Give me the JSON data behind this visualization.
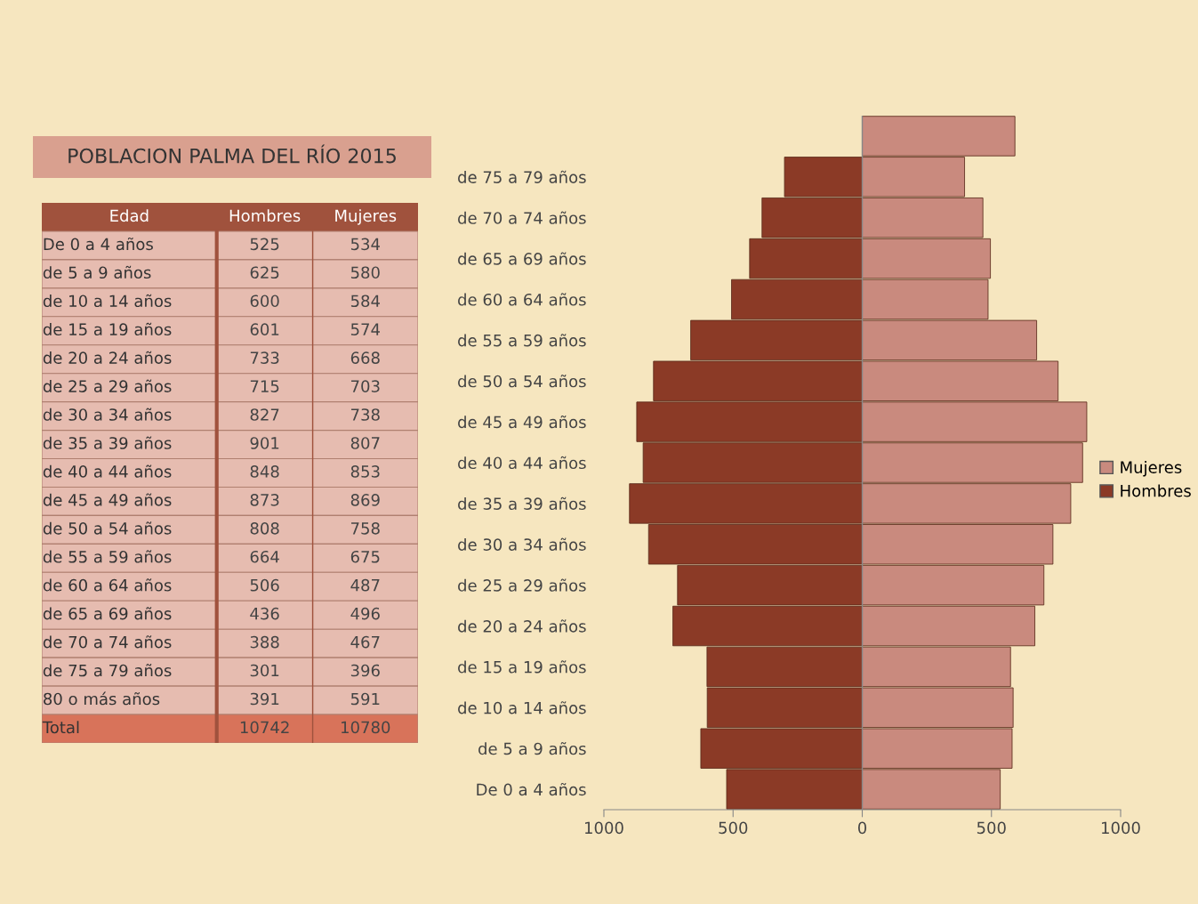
{
  "chart_data": [
    {
      "type": "other",
      "title": "POBLACION PALMA DEL RÍO 2015",
      "annotations": [
        "Edad"
      ],
      "data_labels": true,
      "categories": [
        "De 0 a 4 años",
        "de 5 a 9 años",
        "de 10 a 14 años",
        "de 15 a 19 años",
        "de 20 a 24 años",
        "de 25 a 29 años",
        "de 30 a 34 años",
        "de 35 a 39 años",
        "de 40 a 44 años",
        "de 45 a 49 años",
        "de 50 a 54 años",
        "de 55 a 59 años",
        "de 60 a 64 años",
        "de 65 a 69 años",
        "de 70 a 74 años",
        "de 75 a 79 años",
        "80 o más años",
        "Total"
      ],
      "series": [
        {
          "name": "Hombres",
          "colors": [
            "#e6bcb0",
            "#e6bcb0",
            "#e6bcb0",
            "#e6bcb0",
            "#e6bcb0",
            "#e6bcb0",
            "#e6bcb0",
            "#e6bcb0",
            "#e6bcb0",
            "#e6bcb0",
            "#e6bcb0",
            "#e6bcb0",
            "#e6bcb0",
            "#e6bcb0",
            "#e6bcb0",
            "#e6bcb0",
            "#e6bcb0",
            "#d8735a"
          ],
          "values": [
            525,
            625,
            600,
            601,
            733,
            715,
            827,
            901,
            848,
            873,
            808,
            664,
            506,
            436,
            388,
            301,
            391,
            10742
          ]
        },
        {
          "name": "Mujeres",
          "colors": [
            "#e6bcb0",
            "#e6bcb0",
            "#e6bcb0",
            "#e6bcb0",
            "#e6bcb0",
            "#e6bcb0",
            "#e6bcb0",
            "#e6bcb0",
            "#e6bcb0",
            "#e6bcb0",
            "#e6bcb0",
            "#e6bcb0",
            "#e6bcb0",
            "#e6bcb0",
            "#e6bcb0",
            "#e6bcb0",
            "#e6bcb0",
            "#d8735a"
          ],
          "values": [
            534,
            580,
            584,
            574,
            668,
            703,
            738,
            807,
            853,
            869,
            758,
            675,
            487,
            496,
            467,
            396,
            591,
            10780
          ]
        }
      ]
    },
    {
      "type": "bar",
      "orientation": "horizontal",
      "legend": "right",
      "stacked": true,
      "categories": [
        null,
        "de 75 a 79 años",
        "de 70 a 74 años",
        "de 65 a 69 años",
        "de 60 a 64 años",
        "de 55 a 59 años",
        "de 50 a 54 años",
        "de 45 a 49 años",
        "de 40 a 44 años",
        "de 35 a 39 años",
        "de 30 a 34 años",
        "de 25 a 29 años",
        "de 20 a 24 años",
        "de 15 a 19 años",
        "de 10 a 14 años",
        "de 5 a 9 años",
        "De 0 a 4 años"
      ],
      "series": [
        {
          "name": "Mujeres",
          "color": "#c98a7e",
          "values": [
            591,
            396,
            467,
            496,
            487,
            675,
            758,
            869,
            853,
            807,
            738,
            703,
            668,
            574,
            584,
            580,
            534
          ]
        },
        {
          "name": "Hombres",
          "color": "#8b3a26",
          "values": [
            null,
            -301,
            -388,
            -436,
            -506,
            -664,
            -808,
            -873,
            -848,
            -901,
            -827,
            -715,
            -733,
            -601,
            -600,
            -625,
            -525
          ]
        }
      ],
      "xlim": [
        -1000,
        1000
      ],
      "xticks": [
        {
          "value": -1000,
          "label": "1000"
        },
        {
          "value": -500,
          "label": "500"
        },
        0,
        500,
        1000
      ]
    }
  ]
}
